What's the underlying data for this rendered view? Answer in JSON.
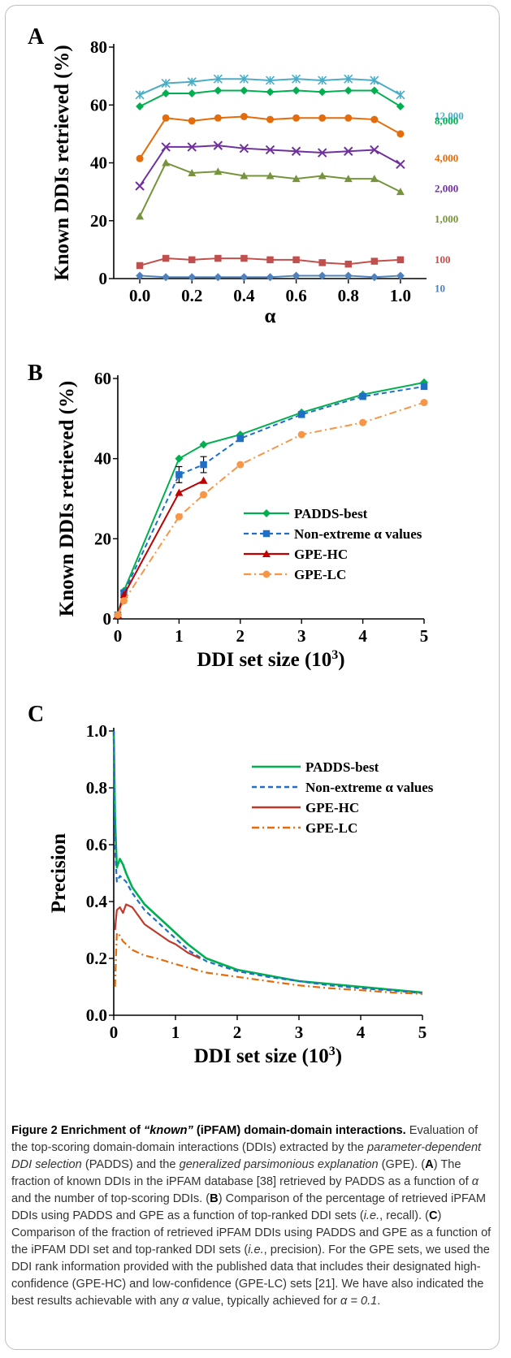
{
  "chart_data": [
    {
      "panel_label": "A",
      "type": "line",
      "xlabel": "α",
      "ylabel": "Known DDIs retrieved (%)",
      "xlim": [
        -0.1,
        1.1
      ],
      "ylim": [
        0,
        80
      ],
      "x": [
        0.0,
        0.1,
        0.2,
        0.3,
        0.4,
        0.5,
        0.6,
        0.7,
        0.8,
        0.9,
        1.0
      ],
      "xticks": [
        "0.0",
        "0.2",
        "0.4",
        "0.6",
        "0.8",
        "1.0"
      ],
      "yticks": [
        "0",
        "20",
        "40",
        "60",
        "80"
      ],
      "series": [
        {
          "name": "12,000",
          "color": "#4bacc6",
          "marker": "asterisk",
          "values": [
            63.5,
            67.5,
            68,
            69,
            69,
            68.5,
            69,
            68.5,
            69,
            68.5,
            63.5
          ]
        },
        {
          "name": "8,000",
          "color": "#00b050",
          "marker": "diamond",
          "values": [
            59.5,
            64,
            64,
            65,
            65,
            64.5,
            65,
            64.5,
            65,
            65,
            59.5
          ]
        },
        {
          "name": "4,000",
          "color": "#e46c0a",
          "marker": "circle",
          "values": [
            41.5,
            55.5,
            54.5,
            55.5,
            56,
            55,
            55.5,
            55.5,
            55.5,
            55,
            50
          ]
        },
        {
          "name": "2,000",
          "color": "#7030a0",
          "marker": "x",
          "values": [
            32,
            45.5,
            45.5,
            46,
            45,
            44.5,
            44,
            43.5,
            44,
            44.5,
            39.5
          ]
        },
        {
          "name": "1,000",
          "color": "#77933c",
          "marker": "triangle",
          "values": [
            21.5,
            40,
            36.5,
            37,
            35.5,
            35.5,
            34.5,
            35.5,
            34.5,
            34.5,
            30
          ]
        },
        {
          "name": "100",
          "color": "#c0504d",
          "marker": "square",
          "values": [
            4.5,
            7,
            6.5,
            7,
            7,
            6.5,
            6.5,
            5.5,
            5,
            6,
            6.5
          ]
        },
        {
          "name": "10",
          "color": "#4f81bd",
          "marker": "diamond",
          "values": [
            1,
            0.5,
            0.5,
            0.5,
            0.5,
            0.5,
            1,
            1,
            1,
            0.5,
            1
          ]
        }
      ]
    },
    {
      "panel_label": "B",
      "type": "line",
      "xlabel": "DDI set size (10",
      "xlabel_sup": "3",
      "xlabel_end": ")",
      "ylabel": "Known DDIs retrieved (%)",
      "xlim": [
        0,
        5
      ],
      "ylim": [
        0,
        60
      ],
      "xticks": [
        "0",
        "1",
        "2",
        "3",
        "4",
        "5"
      ],
      "yticks": [
        "0",
        "20",
        "40",
        "60"
      ],
      "legend_position": "lower-right",
      "series": [
        {
          "name": "PADDS-best",
          "color": "#00b050",
          "style": "solid",
          "marker": "diamond",
          "x": [
            0,
            0.1,
            1,
            1.4,
            2,
            3,
            4,
            5
          ],
          "values": [
            1,
            7,
            40,
            43.5,
            46,
            51.5,
            56,
            59
          ]
        },
        {
          "name": "Non-extreme α values",
          "color": "#1f6fc5",
          "style": "dashed",
          "marker": "square",
          "x": [
            0,
            0.1,
            1,
            1.4,
            2,
            3,
            4,
            5
          ],
          "values": [
            1,
            6.5,
            36,
            38.5,
            45,
            51,
            55.5,
            58
          ],
          "errors": [
            0,
            0.5,
            2,
            2,
            0.5,
            0.5,
            0.5,
            0.5
          ]
        },
        {
          "name": "GPE-HC",
          "color": "#c00000",
          "style": "solid",
          "marker": "triangle",
          "x": [
            0,
            0.1,
            1,
            1.4
          ],
          "values": [
            1,
            6,
            31.5,
            34.5
          ]
        },
        {
          "name": "GPE-LC",
          "color": "#f79646",
          "style": "dashdot",
          "marker": "circle",
          "x": [
            0,
            0.1,
            1,
            1.4,
            2,
            3,
            4,
            5
          ],
          "values": [
            1,
            4.5,
            25.5,
            31,
            38.5,
            46,
            49,
            54
          ]
        }
      ]
    },
    {
      "panel_label": "C",
      "type": "line",
      "xlabel": "DDI set size (10",
      "xlabel_sup": "3",
      "xlabel_end": ")",
      "ylabel": "Precision",
      "xlim": [
        0,
        5
      ],
      "ylim": [
        0,
        1
      ],
      "xticks": [
        "0",
        "1",
        "2",
        "3",
        "4",
        "5"
      ],
      "yticks": [
        "0.0",
        "0.2",
        "0.4",
        "0.6",
        "0.8",
        "1.0"
      ],
      "legend_position": "top-right",
      "series": [
        {
          "name": "PADDS-best",
          "color": "#00b050",
          "style": "solid",
          "x": [
            0,
            0.02,
            0.05,
            0.1,
            0.15,
            0.2,
            0.3,
            0.4,
            0.5,
            0.7,
            0.9,
            1.0,
            1.2,
            1.5,
            2,
            2.5,
            3,
            3.5,
            4,
            4.5,
            5
          ],
          "values": [
            1.0,
            0.7,
            0.52,
            0.55,
            0.53,
            0.5,
            0.45,
            0.42,
            0.39,
            0.35,
            0.31,
            0.29,
            0.25,
            0.2,
            0.16,
            0.14,
            0.12,
            0.11,
            0.1,
            0.09,
            0.08
          ]
        },
        {
          "name": "Non-extreme α values",
          "color": "#1f6fc5",
          "style": "dashed",
          "x": [
            0,
            0.02,
            0.05,
            0.1,
            0.15,
            0.2,
            0.3,
            0.4,
            0.5,
            0.7,
            0.9,
            1.0,
            1.2,
            1.5,
            2,
            2.5,
            3,
            3.5,
            4,
            4.5,
            5
          ],
          "values": [
            1.0,
            0.6,
            0.47,
            0.49,
            0.48,
            0.47,
            0.43,
            0.4,
            0.37,
            0.33,
            0.29,
            0.27,
            0.23,
            0.19,
            0.155,
            0.135,
            0.12,
            0.105,
            0.095,
            0.087,
            0.078
          ]
        },
        {
          "name": "GPE-HC",
          "color": "#c0392b",
          "style": "solid",
          "x": [
            0.02,
            0.05,
            0.1,
            0.15,
            0.2,
            0.3,
            0.4,
            0.5,
            0.7,
            0.9,
            1.0,
            1.2,
            1.4
          ],
          "values": [
            0.3,
            0.37,
            0.38,
            0.36,
            0.39,
            0.38,
            0.35,
            0.32,
            0.29,
            0.26,
            0.25,
            0.22,
            0.2
          ]
        },
        {
          "name": "GPE-LC",
          "color": "#e46c0a",
          "style": "dashdot",
          "x": [
            0.02,
            0.05,
            0.1,
            0.15,
            0.2,
            0.3,
            0.5,
            0.7,
            1.0,
            1.5,
            2,
            2.5,
            3,
            3.5,
            4,
            4.5,
            5
          ],
          "values": [
            0.1,
            0.29,
            0.28,
            0.26,
            0.25,
            0.23,
            0.21,
            0.2,
            0.18,
            0.15,
            0.135,
            0.12,
            0.105,
            0.095,
            0.088,
            0.08,
            0.075
          ]
        }
      ]
    }
  ],
  "caption": {
    "figure_label": "Figure 2",
    "title_pre": "Enrichment of ",
    "title_quoted": "“known”",
    "title_post": " (iPFAM) domain-domain interactions.",
    "text": [
      {
        "t": " Evaluation of the top-scoring domain-domain interactions (DDIs) extracted by the "
      },
      {
        "t": "parameter-dependent DDI selection",
        "i": true
      },
      {
        "t": " (PADDS) and the "
      },
      {
        "t": "generalized parsimonious explanation",
        "i": true
      },
      {
        "t": " (GPE). ("
      },
      {
        "t": "A",
        "b": true
      },
      {
        "t": ") The fraction of known DDIs in the iPFAM database [38] retrieved by PADDS as a function of "
      },
      {
        "t": "α",
        "i": true
      },
      {
        "t": " and the number of top-scoring DDIs. ("
      },
      {
        "t": "B",
        "b": true
      },
      {
        "t": ") Comparison of the percentage of retrieved iPFAM DDIs using PADDS and GPE as a function of top-ranked DDI sets ("
      },
      {
        "t": "i.e.",
        "i": true
      },
      {
        "t": ", recall). ("
      },
      {
        "t": "C",
        "b": true
      },
      {
        "t": ") Comparison of the fraction of retrieved iPFAM DDIs using PADDS and GPE as a function of the iPFAM DDI set and top-ranked DDI sets ("
      },
      {
        "t": "i.e.",
        "i": true
      },
      {
        "t": ", precision). For the GPE sets, we used the DDI rank information provided with the published data that includes their designated high-confidence (GPE-HC) and low-confidence (GPE-LC) sets [21]. We have also indicated the best results achievable with any "
      },
      {
        "t": "α",
        "i": true
      },
      {
        "t": " value, typically achieved for "
      },
      {
        "t": "α = 0.1",
        "i": true
      },
      {
        "t": "."
      }
    ]
  }
}
